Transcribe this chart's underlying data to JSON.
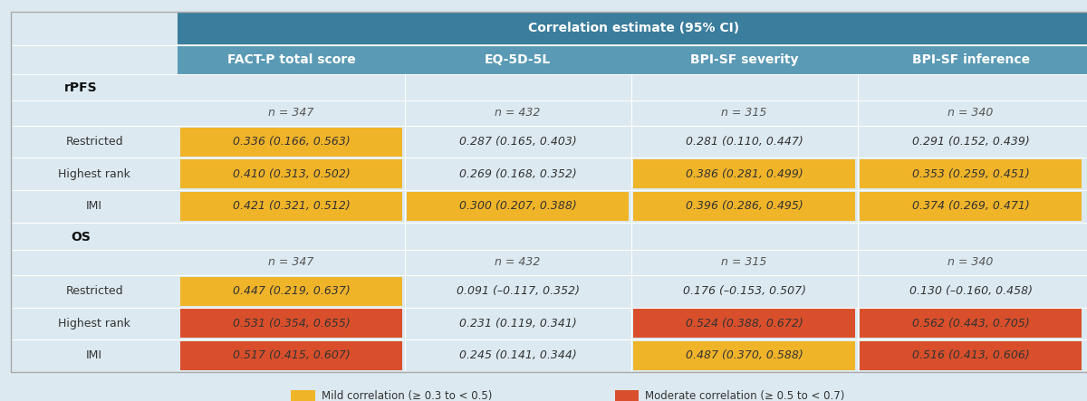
{
  "title": "Correlation estimate (95% CI)",
  "col_headers": [
    "FACT-P total score",
    "EQ-5D-5L",
    "BPI-SF severity",
    "BPI-SF inference"
  ],
  "header_bg": "#3a7d9c",
  "subheader_bg": "#5a9ab5",
  "sections": [
    {
      "label": "rPFS",
      "n_row": [
        "n = 347",
        "n = 432",
        "n = 315",
        "n = 340"
      ],
      "rows": [
        {
          "row_label": "Restricted",
          "values": [
            "0.336 (0.166, 0.563)",
            "0.287 (0.165, 0.403)",
            "0.281 (0.110, 0.447)",
            "0.291 (0.152, 0.439)"
          ],
          "colors": [
            "#f0b429",
            "none",
            "none",
            "none"
          ]
        },
        {
          "row_label": "Highest rank",
          "values": [
            "0.410 (0.313, 0.502)",
            "0.269 (0.168, 0.352)",
            "0.386 (0.281, 0.499)",
            "0.353 (0.259, 0.451)"
          ],
          "colors": [
            "#f0b429",
            "none",
            "#f0b429",
            "#f0b429"
          ]
        },
        {
          "row_label": "IMI",
          "values": [
            "0.421 (0.321, 0.512)",
            "0.300 (0.207, 0.388)",
            "0.396 (0.286, 0.495)",
            "0.374 (0.269, 0.471)"
          ],
          "colors": [
            "#f0b429",
            "#f0b429",
            "#f0b429",
            "#f0b429"
          ]
        }
      ]
    },
    {
      "label": "OS",
      "n_row": [
        "n = 347",
        "n = 432",
        "n = 315",
        "n = 340"
      ],
      "rows": [
        {
          "row_label": "Restricted",
          "values": [
            "0.447 (0.219, 0.637)",
            "0.091 (–0.117, 0.352)",
            "0.176 (–0.153, 0.507)",
            "0.130 (–0.160, 0.458)"
          ],
          "colors": [
            "#f0b429",
            "none",
            "none",
            "none"
          ]
        },
        {
          "row_label": "Highest rank",
          "values": [
            "0.531 (0.354, 0.655)",
            "0.231 (0.119, 0.341)",
            "0.524 (0.388, 0.672)",
            "0.562 (0.443, 0.705)"
          ],
          "colors": [
            "#d94f2b",
            "none",
            "#d94f2b",
            "#d94f2b"
          ]
        },
        {
          "row_label": "IMI",
          "values": [
            "0.517 (0.415, 0.607)",
            "0.245 (0.141, 0.344)",
            "0.487 (0.370, 0.588)",
            "0.516 (0.413, 0.606)"
          ],
          "colors": [
            "#d94f2b",
            "none",
            "#f0b429",
            "#d94f2b"
          ]
        }
      ]
    }
  ],
  "legend": [
    {
      "color": "#f0b429",
      "label": "Mild correlation (≥ 0.3 to < 0.5)"
    },
    {
      "color": "#d94f2b",
      "label": "Moderate correlation (≥ 0.5 to < 0.7)"
    }
  ],
  "bg_color": "#dce9f0",
  "font_size": 9,
  "header_font_size": 10
}
